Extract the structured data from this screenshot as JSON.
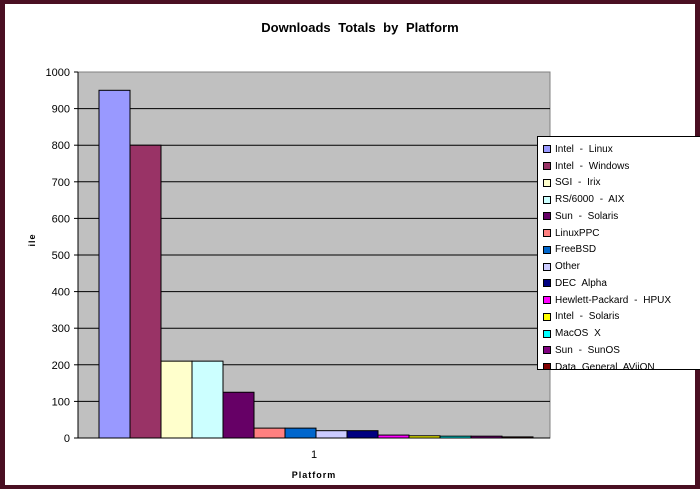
{
  "chart_data": {
    "type": "bar",
    "title": "Downloads  Totals  by  Platform",
    "xlabel": "Platform",
    "ylabel": "",
    "ylabel_fragment": "ile",
    "categories": [
      "1"
    ],
    "ylim": [
      0,
      1000
    ],
    "yticks": [
      0,
      100,
      200,
      300,
      400,
      500,
      600,
      700,
      800,
      900,
      1000
    ],
    "grid": true,
    "legend_position": "right",
    "series": [
      {
        "name": "Intel  -  Linux",
        "values": [
          950
        ],
        "color": "#9999ff"
      },
      {
        "name": "Intel  -  Windows",
        "values": [
          800
        ],
        "color": "#993366"
      },
      {
        "name": "SGI  -  Irix",
        "values": [
          210
        ],
        "color": "#ffffcc"
      },
      {
        "name": "RS/6000  -  AIX",
        "values": [
          210
        ],
        "color": "#ccffff"
      },
      {
        "name": "Sun  -  Solaris",
        "values": [
          125
        ],
        "color": "#660066"
      },
      {
        "name": "LinuxPPC",
        "values": [
          27
        ],
        "color": "#ff8080"
      },
      {
        "name": "FreeBSD",
        "values": [
          27
        ],
        "color": "#0066cc"
      },
      {
        "name": "Other",
        "values": [
          20
        ],
        "color": "#ccccff"
      },
      {
        "name": "DEC Alpha",
        "values": [
          20
        ],
        "color": "#000080"
      },
      {
        "name": "Hewlett-Packard  -  HPUX",
        "values": [
          8
        ],
        "color": "#ff00ff"
      },
      {
        "name": "Intel  -  Solaris",
        "values": [
          6
        ],
        "color": "#ffff00"
      },
      {
        "name": "MacOS X",
        "values": [
          5
        ],
        "color": "#00ffff"
      },
      {
        "name": "Sun  -  SunOS",
        "values": [
          5
        ],
        "color": "#800080"
      },
      {
        "name": "Data General AViiON",
        "values": [
          3
        ],
        "color": "#800000"
      }
    ],
    "plot_background": "#c0c0c0"
  }
}
